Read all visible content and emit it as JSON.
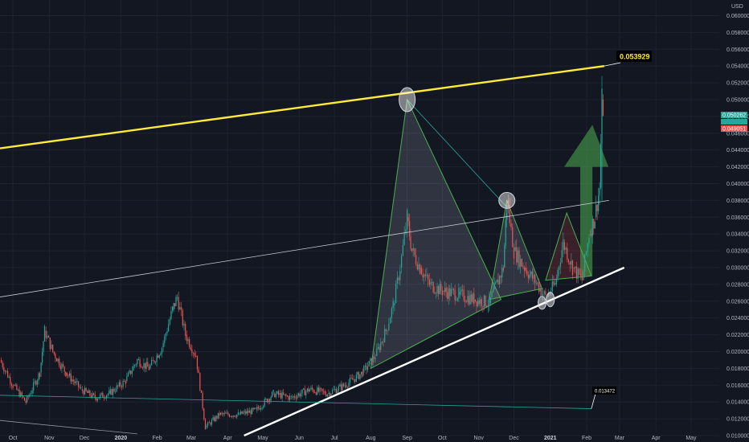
{
  "currency": "USD",
  "colors": {
    "background": "#131722",
    "grid": "#1e2230",
    "up_candle": "#26a69a",
    "down_candle": "#ef5350",
    "yellow_line": "#ffeb3b",
    "white_line": "#ffffff",
    "triangle_edge": "#4caf50",
    "triangle_fill": "rgba(156,160,176,0.22)",
    "arrow_fill": "rgba(76,175,80,0.55)"
  },
  "badges": {
    "last_price": "0.049051",
    "mid": "",
    "high": "0.050262"
  },
  "annotations": {
    "upper_callout": "0.053929",
    "lower_callout": "0.013472"
  },
  "chart_data": {
    "type": "line",
    "title": "",
    "xlabel": "",
    "ylabel": "",
    "y_axis_position": "right",
    "ylim": [
      0.01,
      0.061
    ],
    "y_ticks": [
      "0.060000",
      "0.058000",
      "0.056000",
      "0.054000",
      "0.052000",
      "0.050000",
      "0.048000",
      "0.046000",
      "0.044000",
      "0.042000",
      "0.040000",
      "0.038000",
      "0.036000",
      "0.034000",
      "0.032000",
      "0.030000",
      "0.028000",
      "0.026000",
      "0.024000",
      "0.022000",
      "0.020000",
      "0.018000",
      "0.016000",
      "0.014000",
      "0.012000",
      "0.010000"
    ],
    "x_ticks": [
      "Oct",
      "Nov",
      "Dec",
      "2020",
      "Feb",
      "Mar",
      "Apr",
      "May",
      "Jun",
      "Jul",
      "Aug",
      "Sep",
      "Oct",
      "Nov",
      "Dec",
      "2021",
      "Feb",
      "Mar",
      "Apr",
      "May"
    ],
    "year_ticks": [
      "2020",
      "2021"
    ],
    "grid": true,
    "series": [
      {
        "kind": "candlestick-close",
        "points": [
          [
            "2019-09-20",
            0.019
          ],
          [
            "2019-10-01",
            0.016
          ],
          [
            "2019-10-12",
            0.014
          ],
          [
            "2019-10-24",
            0.0175
          ],
          [
            "2019-10-28",
            0.0225
          ],
          [
            "2019-11-04",
            0.02
          ],
          [
            "2019-11-15",
            0.0175
          ],
          [
            "2019-11-28",
            0.0155
          ],
          [
            "2019-12-10",
            0.0145
          ],
          [
            "2019-12-22",
            0.015
          ],
          [
            "2020-01-05",
            0.0165
          ],
          [
            "2020-01-15",
            0.019
          ],
          [
            "2020-01-25",
            0.018
          ],
          [
            "2020-02-05",
            0.0205
          ],
          [
            "2020-02-14",
            0.025
          ],
          [
            "2020-02-18",
            0.0265
          ],
          [
            "2020-02-25",
            0.022
          ],
          [
            "2020-03-05",
            0.0195
          ],
          [
            "2020-03-13",
            0.011
          ],
          [
            "2020-03-25",
            0.0125
          ],
          [
            "2020-04-10",
            0.0125
          ],
          [
            "2020-04-25",
            0.013
          ],
          [
            "2020-05-10",
            0.015
          ],
          [
            "2020-05-25",
            0.0145
          ],
          [
            "2020-06-10",
            0.0155
          ],
          [
            "2020-06-25",
            0.015
          ],
          [
            "2020-07-10",
            0.016
          ],
          [
            "2020-07-25",
            0.0175
          ],
          [
            "2020-08-05",
            0.0195
          ],
          [
            "2020-08-14",
            0.0225
          ],
          [
            "2020-08-20",
            0.0255
          ],
          [
            "2020-08-26",
            0.03
          ],
          [
            "2020-09-01",
            0.036
          ],
          [
            "2020-09-05",
            0.032
          ],
          [
            "2020-09-12",
            0.03
          ],
          [
            "2020-09-20",
            0.028
          ],
          [
            "2020-10-01",
            0.0272
          ],
          [
            "2020-10-15",
            0.0268
          ],
          [
            "2020-10-28",
            0.0262
          ],
          [
            "2020-11-10",
            0.0258
          ],
          [
            "2020-11-22",
            0.03
          ],
          [
            "2020-11-25",
            0.038
          ],
          [
            "2020-12-01",
            0.032
          ],
          [
            "2020-12-10",
            0.03
          ],
          [
            "2020-12-20",
            0.0282
          ],
          [
            "2020-12-28",
            0.0265
          ],
          [
            "2021-01-05",
            0.028
          ],
          [
            "2021-01-12",
            0.033
          ],
          [
            "2021-01-20",
            0.03
          ],
          [
            "2021-01-28",
            0.0285
          ],
          [
            "2021-02-03",
            0.034
          ],
          [
            "2021-02-08",
            0.036
          ],
          [
            "2021-02-12",
            0.0395
          ],
          [
            "2021-02-14",
            0.05
          ],
          [
            "2021-02-15",
            0.049
          ]
        ]
      }
    ],
    "trendlines": [
      {
        "name": "",
        "style": "yellow",
        "from": [
          "2019-09-20",
          0.0442
        ],
        "to": [
          "2021-02-16",
          0.054
        ]
      },
      {
        "name": "",
        "style": "thin-white",
        "from": [
          "2019-09-20",
          0.0265
        ],
        "to": [
          "2021-02-20",
          0.038
        ]
      },
      {
        "name": "",
        "style": "white",
        "from": [
          "2020-04-15",
          0.01
        ],
        "to": [
          "2021-03-05",
          0.03
        ]
      },
      {
        "name": "",
        "style": "teal-horizontal",
        "from": [
          "2019-09-20",
          0.0148
        ],
        "to": [
          "2021-02-05",
          0.0132
        ]
      },
      {
        "name": "",
        "style": "thin-gray",
        "from": [
          "2019-09-20",
          0.0118
        ],
        "to": [
          "2020-01-15",
          0.0102
        ]
      }
    ],
    "annotations": [
      "0.053929",
      "0.013472"
    ]
  }
}
